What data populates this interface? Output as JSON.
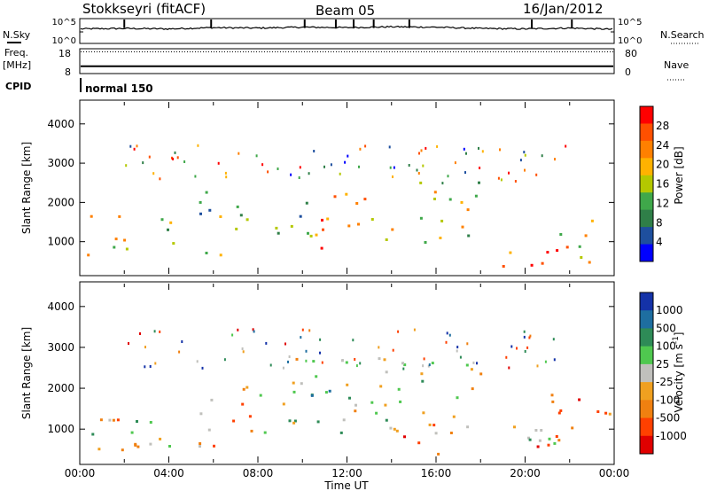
{
  "header": {
    "station": "Stokkseyri (fitACF)",
    "beam": "Beam 05",
    "date": "16/Jan/2012"
  },
  "side_labels": {
    "nsky": "N.Sky",
    "freq": "Freq.",
    "freq_unit": "[MHz]",
    "cpid": "CPID",
    "nsearch": "N.Search",
    "nave": "Nave"
  },
  "cpid_value": "normal 150",
  "colors": {
    "power": [
      "#0000ff",
      "#1e4f9e",
      "#2f7f48",
      "#3fa84a",
      "#b4c800",
      "#ffb200",
      "#ff8000",
      "#ff5000",
      "#ff0000"
    ],
    "velocity": [
      "#1432a8",
      "#1e6ea0",
      "#2e8b57",
      "#4fc84f",
      "#c0c0bc",
      "#f0a020",
      "#f08010",
      "#ff4000",
      "#e00000"
    ],
    "trace": "#000000"
  },
  "chart_data": [
    {
      "type": "line",
      "id": "noise",
      "ylabel_left": "N.Sky",
      "ylabel_right": "N.Search",
      "left_ticks": [
        "10^5",
        "10^0"
      ],
      "right_ticks": [
        "10^5",
        "10^0"
      ],
      "x": [
        0,
        2,
        4,
        6,
        8,
        10,
        12,
        14,
        16,
        18,
        20,
        22,
        24
      ],
      "values": [
        3.0,
        3.1,
        3.0,
        3.3,
        3.2,
        3.4,
        3.3,
        3.5,
        3.4,
        3.1,
        3.0,
        3.2,
        2.9
      ],
      "spikes_at_hours": [
        2.0,
        5.9,
        10.1,
        11.5,
        12.3,
        13.2,
        14.8,
        20.3,
        22.1
      ]
    },
    {
      "type": "line",
      "id": "frequency",
      "ylabel_left": "Freq. [MHz]",
      "left_ticks": [
        "18",
        "8"
      ],
      "right_ticks": [
        "80",
        "0"
      ],
      "freq_mhz": 10.0,
      "nave_dotted": 75,
      "ylim_left": [
        8,
        18
      ],
      "ylim_right": [
        0,
        80
      ]
    },
    {
      "type": "heatmap",
      "id": "power",
      "quantity": "Power",
      "colorbar_label": "Power [dB]",
      "colorbar_ticks": [
        "28",
        "24",
        "20",
        "16",
        "12",
        "8",
        "4"
      ],
      "ylabel": "Slant Range [km]",
      "ylim": [
        180,
        4560
      ],
      "y_ticks": [
        "4000",
        "3000",
        "2000",
        "1000"
      ],
      "xlim": [
        0,
        24
      ],
      "regions": [
        {
          "t0": 0.2,
          "t1": 2.8,
          "r0": 500,
          "r1": 1700,
          "level": 5
        },
        {
          "t0": 2.8,
          "t1": 4.5,
          "r0": 600,
          "r1": 1700,
          "level": 3
        },
        {
          "t0": 5.3,
          "t1": 7.5,
          "r0": 600,
          "r1": 2300,
          "level": 3
        },
        {
          "t0": 6.5,
          "t1": 8.2,
          "r0": 1200,
          "r1": 1800,
          "level": 6
        },
        {
          "t0": 8.5,
          "t1": 10.5,
          "r0": 1100,
          "r1": 2500,
          "level": 3
        },
        {
          "t0": 10.5,
          "t1": 14.5,
          "r0": 800,
          "r1": 2300,
          "level": 6
        },
        {
          "t0": 14.5,
          "t1": 18.0,
          "r0": 900,
          "r1": 2600,
          "level": 4
        },
        {
          "t0": 18.5,
          "t1": 21.5,
          "r0": 400,
          "r1": 1200,
          "level": 7
        },
        {
          "t0": 21.5,
          "t1": 24.0,
          "r0": 500,
          "r1": 1700,
          "level": 5
        }
      ]
    },
    {
      "type": "heatmap",
      "id": "velocity",
      "quantity": "Velocity",
      "colorbar_label": "Velocity [m s^-1]",
      "colorbar_ticks": [
        "1000",
        "500",
        "100",
        "25",
        "-25",
        "-100",
        "-500",
        "-1000"
      ],
      "ylabel": "Slant Range [km]",
      "ylim": [
        180,
        4560
      ],
      "y_ticks": [
        "4000",
        "3000",
        "2000",
        "1000"
      ],
      "xlim": [
        0,
        24
      ],
      "x_ticks": [
        "00:00",
        "04:00",
        "08:00",
        "12:00",
        "16:00",
        "20:00",
        "00:00"
      ],
      "xlabel": "Time UT",
      "regions": [
        {
          "t0": 0.2,
          "t1": 4.5,
          "r0": 600,
          "r1": 1700,
          "level": 4
        },
        {
          "t0": 0.5,
          "t1": 2.8,
          "r0": 500,
          "r1": 1400,
          "level": 6
        },
        {
          "t0": 5.3,
          "t1": 8.0,
          "r0": 500,
          "r1": 2200,
          "level": 6
        },
        {
          "t0": 7.5,
          "t1": 18.0,
          "r0": 900,
          "r1": 2800,
          "level": 4
        },
        {
          "t0": 9.0,
          "t1": 12.0,
          "r0": 1500,
          "r1": 2200,
          "level": 3
        },
        {
          "t0": 14.5,
          "t1": 17.8,
          "r0": 400,
          "r1": 1200,
          "level": 6
        },
        {
          "t0": 18.5,
          "t1": 21.5,
          "r0": 400,
          "r1": 1200,
          "level": 4
        },
        {
          "t0": 19.5,
          "t1": 24.0,
          "r0": 600,
          "r1": 2000,
          "level": 6
        }
      ]
    }
  ]
}
